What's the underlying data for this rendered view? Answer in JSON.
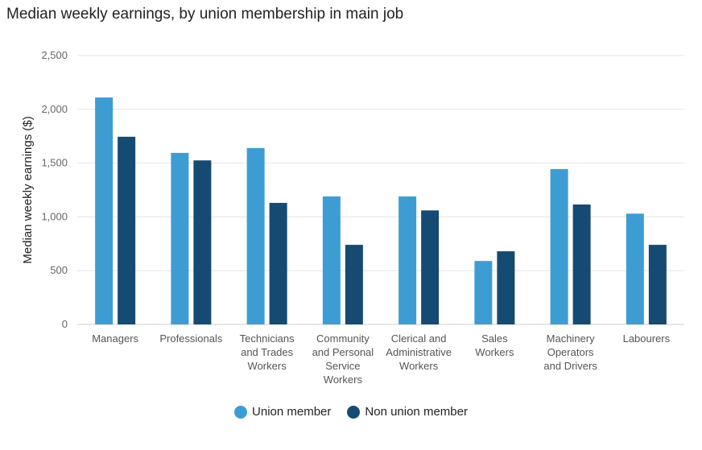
{
  "chart_data": {
    "type": "bar",
    "title": "Median weekly earnings, by union membership in main job",
    "xlabel": "",
    "ylabel": "Median weekly earnings ($)",
    "ylim": [
      0,
      2500
    ],
    "yticks": [
      "0",
      "500",
      "1,000",
      "1,500",
      "2,000",
      "2,500"
    ],
    "categories": [
      [
        "Managers"
      ],
      [
        "Professionals"
      ],
      [
        "Technicians",
        "and Trades",
        "Workers"
      ],
      [
        "Community",
        "and Personal",
        "Service",
        "Workers"
      ],
      [
        "Clerical and",
        "Administrative",
        "Workers"
      ],
      [
        "Sales",
        "Workers"
      ],
      [
        "Machinery",
        "Operators",
        "and Drivers"
      ],
      [
        "Labourers"
      ]
    ],
    "series": [
      {
        "name": "Union member",
        "color": "#3d9dd3",
        "values": [
          2110,
          1595,
          1640,
          1190,
          1190,
          590,
          1445,
          1030
        ]
      },
      {
        "name": "Non union member",
        "color": "#154a72",
        "values": [
          1745,
          1525,
          1130,
          740,
          1060,
          680,
          1115,
          740
        ]
      }
    ],
    "grid": true,
    "legend_position": "bottom-center"
  }
}
